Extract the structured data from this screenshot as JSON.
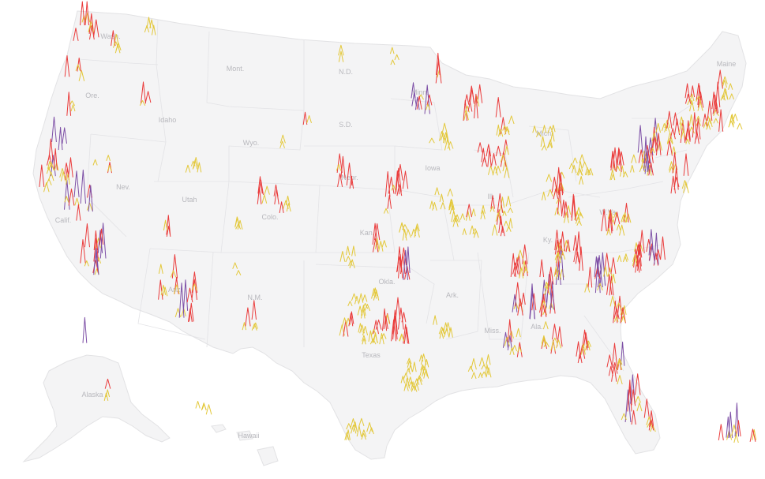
{
  "map": {
    "state_labels": [
      "Wash.",
      "Ore.",
      "Idaho",
      "Mont.",
      "N.D.",
      "S.D.",
      "Wyo.",
      "Nev.",
      "Utah",
      "Colo.",
      "Nebr.",
      "Kan.",
      "Calif.",
      "Ariz.",
      "N.M.",
      "Texas",
      "Okla.",
      "Ark.",
      "Miss.",
      "Ala.",
      "Minn.",
      "Iowa",
      "Mich.",
      "W.Va.",
      "Ky.",
      "Ill.",
      "Maine",
      "Alaska",
      "Hawaii"
    ],
    "spike_colors": {
      "low": "#e3c83a",
      "medium": "#ea3b3b",
      "high": "#7d4fa6"
    }
  }
}
